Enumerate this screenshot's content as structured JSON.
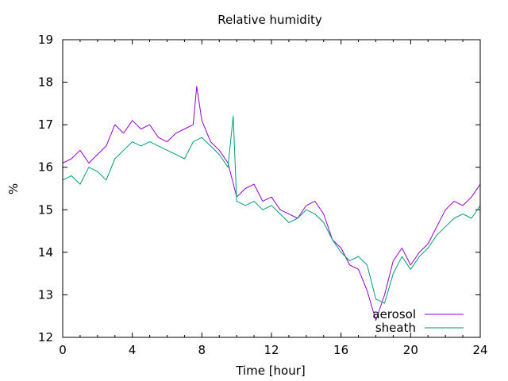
{
  "chart_data": {
    "type": "line",
    "title": "Relative humidity",
    "xlabel": "Time [hour]",
    "ylabel": "%",
    "xlim": [
      0,
      24
    ],
    "ylim": [
      12,
      19
    ],
    "x_ticks": [
      "0",
      "4",
      "8",
      "12",
      "16",
      "20",
      "24"
    ],
    "x_tick_values": [
      0,
      4,
      8,
      12,
      16,
      20,
      24
    ],
    "y_ticks": [
      "12",
      "13",
      "14",
      "15",
      "16",
      "17",
      "18",
      "19"
    ],
    "y_tick_values": [
      12,
      13,
      14,
      15,
      16,
      17,
      18,
      19
    ],
    "grid": false,
    "legend_position": "bottom-right",
    "series": [
      {
        "name": "aerosol",
        "color": "#9400d3",
        "x": [
          0,
          0.5,
          1,
          1.5,
          2,
          2.5,
          3,
          3.5,
          4,
          4.5,
          5,
          5.5,
          6,
          6.5,
          7,
          7.5,
          7.7,
          8,
          8.5,
          9,
          9.5,
          10,
          10.5,
          11,
          11.5,
          12,
          12.5,
          13,
          13.5,
          14,
          14.5,
          15,
          15.5,
          16,
          16.5,
          17,
          17.5,
          18,
          18.5,
          19,
          19.5,
          20,
          20.5,
          21,
          21.5,
          22,
          22.5,
          23,
          23.5,
          24
        ],
        "values": [
          16.1,
          16.2,
          16.4,
          16.1,
          16.3,
          16.5,
          17.0,
          16.8,
          17.1,
          16.9,
          17.0,
          16.7,
          16.6,
          16.8,
          16.9,
          17.0,
          17.9,
          17.1,
          16.6,
          16.4,
          16.1,
          15.3,
          15.5,
          15.6,
          15.2,
          15.3,
          15.0,
          14.9,
          14.8,
          15.1,
          15.2,
          14.9,
          14.3,
          14.1,
          13.7,
          13.6,
          13.1,
          12.4,
          13.0,
          13.8,
          14.1,
          13.7,
          14.0,
          14.2,
          14.6,
          15.0,
          15.2,
          15.1,
          15.3,
          15.6
        ]
      },
      {
        "name": "sheath",
        "color": "#009e73",
        "x": [
          0,
          0.5,
          1,
          1.5,
          2,
          2.5,
          3,
          3.5,
          4,
          4.5,
          5,
          5.5,
          6,
          6.5,
          7,
          7.5,
          8,
          8.5,
          9,
          9.5,
          9.8,
          10,
          10.5,
          11,
          11.5,
          12,
          12.5,
          13,
          13.5,
          14,
          14.5,
          15,
          15.5,
          16,
          16.5,
          17,
          17.5,
          18,
          18.5,
          19,
          19.5,
          20,
          20.5,
          21,
          21.5,
          22,
          22.5,
          23,
          23.5,
          24
        ],
        "values": [
          15.7,
          15.8,
          15.6,
          16.0,
          15.9,
          15.7,
          16.2,
          16.4,
          16.6,
          16.5,
          16.6,
          16.5,
          16.4,
          16.3,
          16.2,
          16.6,
          16.7,
          16.5,
          16.3,
          16.0,
          17.2,
          15.2,
          15.1,
          15.2,
          15.0,
          15.1,
          14.9,
          14.7,
          14.8,
          15.0,
          14.9,
          14.7,
          14.3,
          14.0,
          13.8,
          13.9,
          13.7,
          12.9,
          12.8,
          13.5,
          13.9,
          13.6,
          13.9,
          14.1,
          14.4,
          14.6,
          14.8,
          14.9,
          14.8,
          15.1
        ]
      }
    ]
  }
}
